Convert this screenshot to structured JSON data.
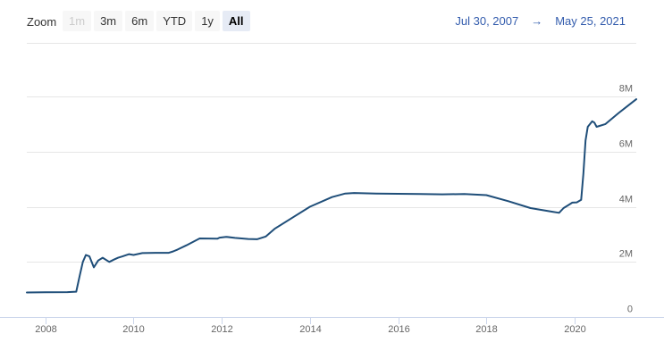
{
  "toolbar": {
    "zoom_label": "Zoom",
    "buttons": [
      {
        "label": "1m",
        "state": "disabled"
      },
      {
        "label": "3m",
        "state": "normal"
      },
      {
        "label": "6m",
        "state": "normal"
      },
      {
        "label": "YTD",
        "state": "normal"
      },
      {
        "label": "1y",
        "state": "normal"
      },
      {
        "label": "All",
        "state": "selected"
      }
    ],
    "range_from": "Jul 30, 2007",
    "range_arrow": "→",
    "range_to": "May 25, 2021"
  },
  "colors": {
    "series": "#1f4e79",
    "range_text": "#335cad",
    "selected_button_bg": "#e6ebf5",
    "grid": "#e6e6e6"
  },
  "chart_data": {
    "type": "line",
    "title": "",
    "xlabel": "",
    "ylabel": "",
    "xlim": [
      2007.58,
      2021.4
    ],
    "ylim": [
      0,
      8000000
    ],
    "y_tick_labels": [
      "0",
      "2M",
      "4M",
      "6M",
      "8M"
    ],
    "y_tick_values": [
      0,
      2000000,
      4000000,
      6000000,
      8000000
    ],
    "x_tick_labels": [
      "2008",
      "2010",
      "2012",
      "2014",
      "2016",
      "2018",
      "2020"
    ],
    "x_tick_values": [
      2008,
      2010,
      2012,
      2014,
      2016,
      2018,
      2020
    ],
    "grid": true,
    "legend": "none",
    "series": [
      {
        "x": [
          2007.58,
          2008.0,
          2008.5,
          2008.7,
          2008.78,
          2008.85,
          2008.92,
          2009.0,
          2009.1,
          2009.2,
          2009.3,
          2009.45,
          2009.55,
          2009.65,
          2009.75,
          2009.9,
          2010.0,
          2010.2,
          2010.5,
          2010.8,
          2010.9,
          2011.0,
          2011.2,
          2011.5,
          2011.9,
          2011.95,
          2012.1,
          2012.3,
          2012.6,
          2012.8,
          2013.0,
          2013.2,
          2013.6,
          2014.0,
          2014.5,
          2014.8,
          2015.0,
          2015.5,
          2016.0,
          2016.5,
          2017.0,
          2017.5,
          2018.0,
          2018.5,
          2019.0,
          2019.5,
          2019.65,
          2019.75,
          2019.95,
          2020.05,
          2020.15,
          2020.2,
          2020.25,
          2020.3,
          2020.4,
          2020.45,
          2020.5,
          2020.7,
          2021.0,
          2021.2,
          2021.4
        ],
        "values": [
          890000,
          900000,
          905000,
          920000,
          1500000,
          2000000,
          2250000,
          2200000,
          1800000,
          2050000,
          2150000,
          2000000,
          2080000,
          2150000,
          2200000,
          2280000,
          2250000,
          2320000,
          2330000,
          2330000,
          2380000,
          2450000,
          2600000,
          2850000,
          2840000,
          2880000,
          2910000,
          2870000,
          2830000,
          2820000,
          2920000,
          3200000,
          3600000,
          4000000,
          4350000,
          4480000,
          4500000,
          4480000,
          4470000,
          4460000,
          4450000,
          4460000,
          4420000,
          4200000,
          3950000,
          3820000,
          3780000,
          3950000,
          4150000,
          4160000,
          4250000,
          5200000,
          6400000,
          6900000,
          7100000,
          7050000,
          6900000,
          7000000,
          7400000,
          7650000,
          7900000
        ]
      }
    ]
  }
}
